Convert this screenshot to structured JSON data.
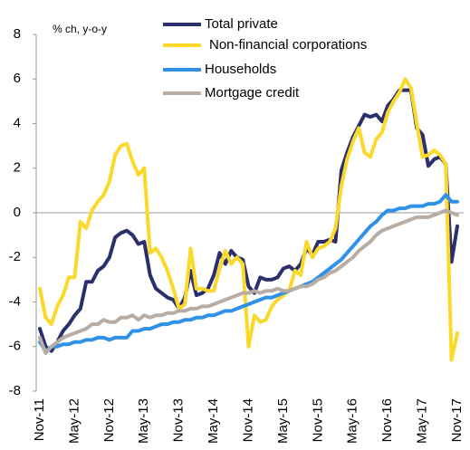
{
  "chart_data": {
    "type": "line",
    "annotation": "% ch, y-o-y",
    "categories": [
      "Nov-11",
      null,
      null,
      null,
      null,
      null,
      "May-12",
      null,
      null,
      null,
      null,
      null,
      "Nov-12",
      null,
      null,
      null,
      null,
      null,
      "May-13",
      null,
      null,
      null,
      null,
      null,
      "Nov-13",
      null,
      null,
      null,
      null,
      null,
      "May-14",
      null,
      null,
      null,
      null,
      null,
      "Nov-14",
      null,
      null,
      null,
      null,
      null,
      "May-15",
      null,
      null,
      null,
      null,
      null,
      "Nov-15",
      null,
      null,
      null,
      null,
      null,
      "May-16",
      null,
      null,
      null,
      null,
      null,
      "Nov-16",
      null,
      null,
      null,
      null,
      null,
      "May-17",
      null,
      null,
      null,
      null,
      null,
      "Nov-17"
    ],
    "series": [
      {
        "name": "Total private",
        "color": "#2b2f6e",
        "values": [
          -5.2,
          -6.0,
          -6.2,
          -5.8,
          -5.3,
          -5.0,
          -4.6,
          -4.3,
          -3.1,
          -3.1,
          -2.6,
          -2.4,
          -2.0,
          -1.1,
          -0.9,
          -0.8,
          -1.0,
          -1.4,
          -1.3,
          -2.8,
          -3.4,
          -3.6,
          -3.8,
          -3.9,
          -4.3,
          -3.8,
          -2.6,
          -3.7,
          -3.6,
          -3.4,
          -2.8,
          -1.8,
          -2.3,
          -1.7,
          -2.0,
          -2.1,
          -3.3,
          -3.6,
          -2.9,
          -3.0,
          -3.0,
          -2.9,
          -2.5,
          -2.4,
          -2.6,
          -2.3,
          -1.6,
          -1.9,
          -1.3,
          -1.3,
          -1.2,
          -1.3,
          1.9,
          2.7,
          3.4,
          3.9,
          4.4,
          4.3,
          4.4,
          4.1,
          4.8,
          5.1,
          5.5,
          5.5,
          5.5,
          3.8,
          3.5,
          2.1,
          2.4,
          2.5,
          2.2,
          -2.2,
          -0.6
        ]
      },
      {
        "name": "Non-financial corporations",
        "color": "#fbd92a",
        "values": [
          -3.4,
          -4.7,
          -5.0,
          -4.2,
          -3.7,
          -2.9,
          -2.9,
          -0.4,
          -0.7,
          0.1,
          0.5,
          0.8,
          1.4,
          2.6,
          3.0,
          3.1,
          2.3,
          1.7,
          2.0,
          -1.8,
          -1.6,
          -2.0,
          -2.6,
          -3.4,
          -4.3,
          -4.1,
          -1.6,
          -3.4,
          -3.4,
          -3.5,
          -3.5,
          -2.5,
          -1.7,
          -2.3,
          -2.0,
          -2.3,
          -6.0,
          -4.6,
          -4.9,
          -4.8,
          -4.2,
          -3.9,
          -3.7,
          -3.5,
          -2.6,
          -2.8,
          -1.3,
          -2.0,
          -1.6,
          -1.5,
          -1.3,
          -0.7,
          1.2,
          2.4,
          3.2,
          3.8,
          2.7,
          2.5,
          3.3,
          3.6,
          4.5,
          5.0,
          5.4,
          6.0,
          5.6,
          4.0,
          2.5,
          2.6,
          2.8,
          2.6,
          2.2,
          -6.6,
          -5.4
        ]
      },
      {
        "name": "Households",
        "color": "#2f91e8",
        "values": [
          -5.8,
          -6.2,
          -6.0,
          -6.0,
          -5.9,
          -5.9,
          -5.8,
          -5.8,
          -5.7,
          -5.7,
          -5.6,
          -5.6,
          -5.7,
          -5.6,
          -5.6,
          -5.6,
          -5.3,
          -5.3,
          -5.2,
          -5.2,
          -5.1,
          -5.0,
          -5.0,
          -4.9,
          -4.9,
          -4.8,
          -4.8,
          -4.7,
          -4.7,
          -4.6,
          -4.6,
          -4.5,
          -4.4,
          -4.4,
          -4.3,
          -4.2,
          -4.1,
          -4.0,
          -3.9,
          -3.8,
          -3.8,
          -3.7,
          -3.6,
          -3.5,
          -3.4,
          -3.3,
          -3.2,
          -3.1,
          -2.9,
          -2.7,
          -2.5,
          -2.3,
          -2.1,
          -1.8,
          -1.5,
          -1.2,
          -0.9,
          -0.6,
          -0.4,
          -0.1,
          0.1,
          0.1,
          0.2,
          0.2,
          0.3,
          0.3,
          0.3,
          0.4,
          0.4,
          0.5,
          0.8,
          0.5,
          0.5
        ]
      },
      {
        "name": "Mortgage credit",
        "color": "#b8aca3",
        "values": [
          -5.6,
          -6.3,
          -6.0,
          -5.8,
          -5.6,
          -5.5,
          -5.4,
          -5.3,
          -5.2,
          -5.0,
          -5.0,
          -4.8,
          -4.9,
          -4.9,
          -4.7,
          -4.7,
          -4.6,
          -4.8,
          -4.6,
          -4.7,
          -4.6,
          -4.6,
          -4.5,
          -4.5,
          -4.4,
          -4.4,
          -4.3,
          -4.3,
          -4.2,
          -4.2,
          -4.1,
          -4.0,
          -3.9,
          -3.8,
          -3.7,
          -3.6,
          -3.6,
          -3.5,
          -3.6,
          -3.5,
          -3.5,
          -3.4,
          -3.5,
          -3.5,
          -3.4,
          -3.3,
          -3.3,
          -3.2,
          -3.0,
          -2.9,
          -2.7,
          -2.6,
          -2.4,
          -2.2,
          -2.0,
          -1.7,
          -1.5,
          -1.3,
          -1.0,
          -0.8,
          -0.7,
          -0.6,
          -0.5,
          -0.4,
          -0.3,
          -0.2,
          -0.2,
          -0.2,
          -0.1,
          0.0,
          0.1,
          0.0,
          -0.1
        ]
      }
    ],
    "ylim": [
      -8,
      8
    ],
    "yticks": [
      -8,
      -6,
      -4,
      -2,
      0,
      2,
      4,
      6,
      8
    ]
  }
}
